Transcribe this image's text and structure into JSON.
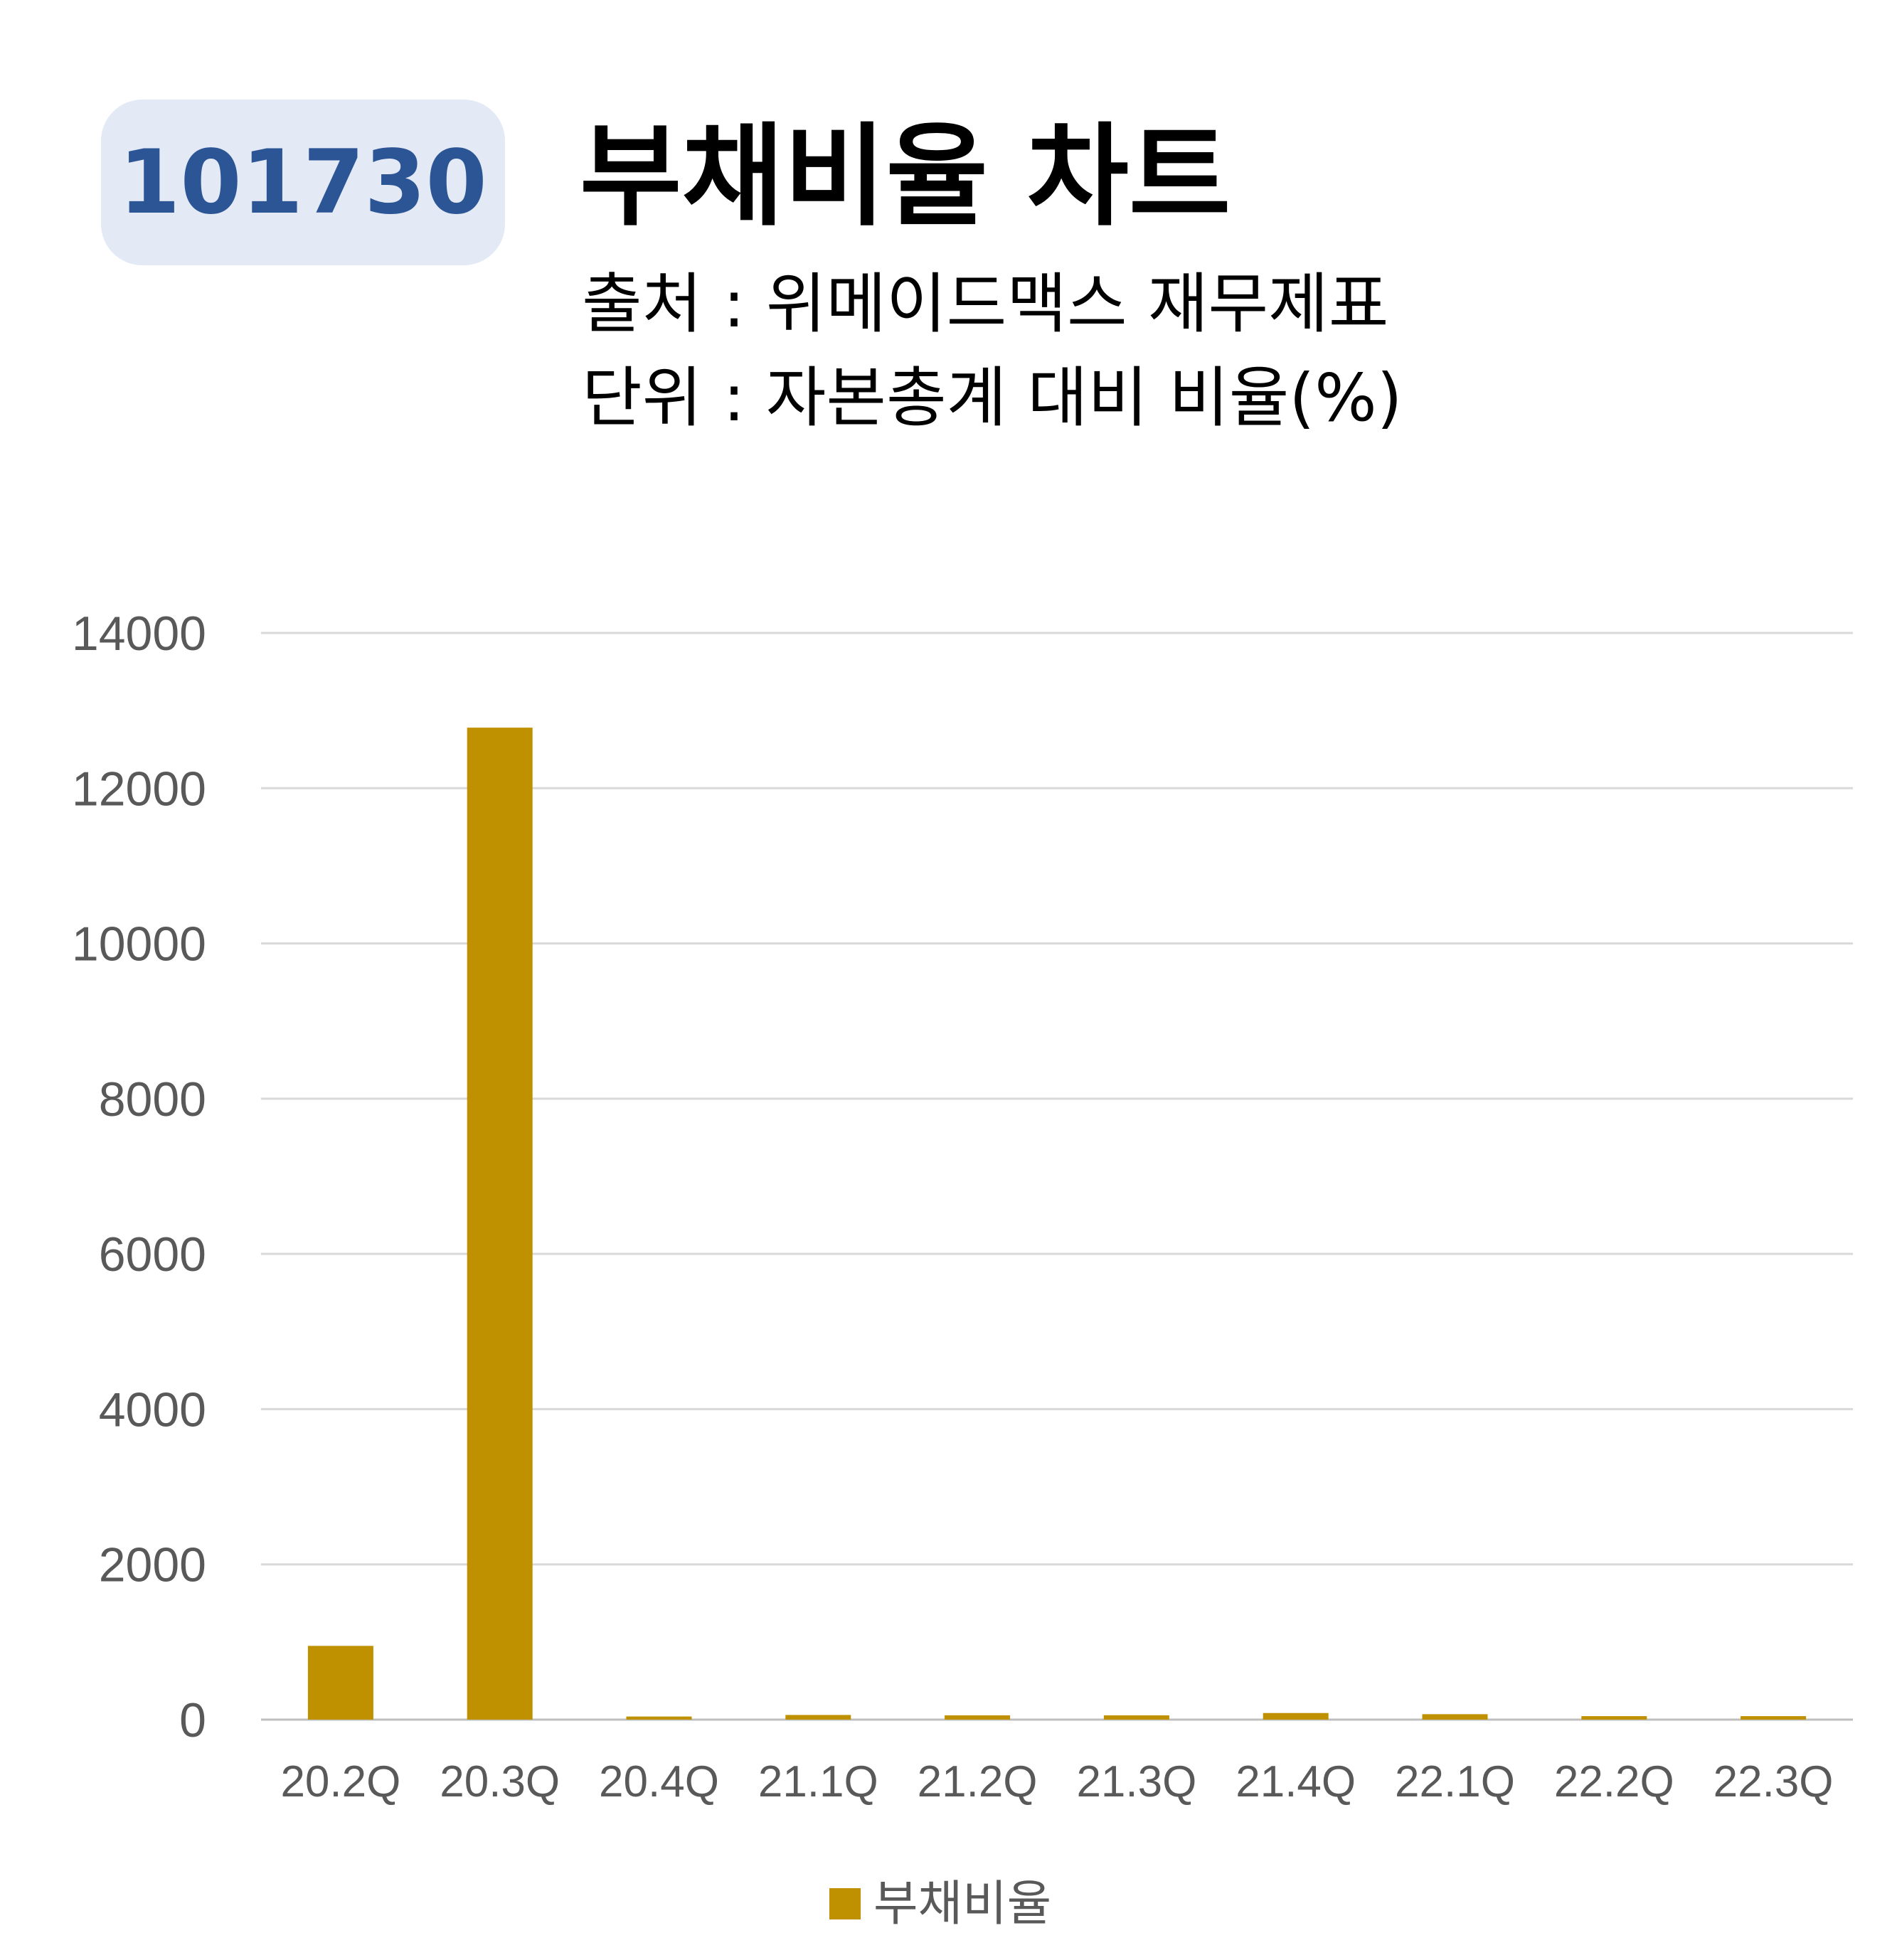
{
  "header": {
    "code_badge": "101730",
    "title": "부채비율 차트",
    "source_line": "출처 : 위메이드맥스 재무제표",
    "unit_line": "단위 : 자본총계 대비 비율(%)"
  },
  "colors": {
    "bar": "#bf9000",
    "badge_bg": "#e3e9f5",
    "badge_text": "#2c5595",
    "grid": "#d9d9d9",
    "axis_text": "#595959"
  },
  "chart_data": {
    "type": "bar",
    "title": "부채비율 차트",
    "xlabel": "",
    "ylabel": "",
    "categories": [
      "20.2Q",
      "20.3Q",
      "20.4Q",
      "21.1Q",
      "21.2Q",
      "21.3Q",
      "21.4Q",
      "22.1Q",
      "22.2Q",
      "22.3Q"
    ],
    "series": [
      {
        "name": "부채비율",
        "values": [
          950,
          12780,
          40,
          60,
          55,
          55,
          85,
          70,
          45,
          45
        ]
      }
    ],
    "ylim": [
      0,
      14000
    ],
    "yticks": [
      0,
      2000,
      4000,
      6000,
      8000,
      10000,
      12000,
      14000
    ],
    "grid": true,
    "legend": "bottom"
  }
}
